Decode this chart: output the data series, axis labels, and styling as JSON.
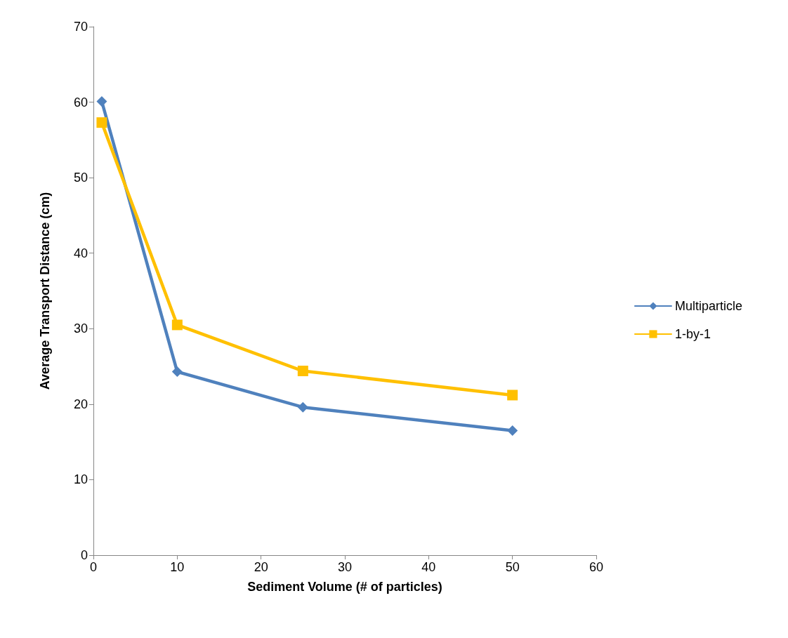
{
  "chart_data": {
    "type": "line",
    "xlabel": "Sediment Volume (# of particles)",
    "ylabel": "Average Transport Distance (cm)",
    "x": [
      1,
      10,
      25,
      50
    ],
    "series": [
      {
        "name": "Multiparticle",
        "color": "#4f81bd",
        "marker": "diamond",
        "values": [
          60.1,
          24.3,
          19.6,
          16.5
        ]
      },
      {
        "name": "1-by-1",
        "color": "#ffc000",
        "marker": "square",
        "values": [
          57.3,
          30.5,
          24.4,
          21.2
        ]
      }
    ],
    "xlim": [
      0,
      60
    ],
    "xticks": [
      0,
      10,
      20,
      30,
      40,
      50,
      60
    ],
    "ylim": [
      0,
      70
    ],
    "yticks": [
      0,
      10,
      20,
      30,
      40,
      50,
      60,
      70
    ],
    "grid": false,
    "legend": "right",
    "line_style": "solid"
  }
}
